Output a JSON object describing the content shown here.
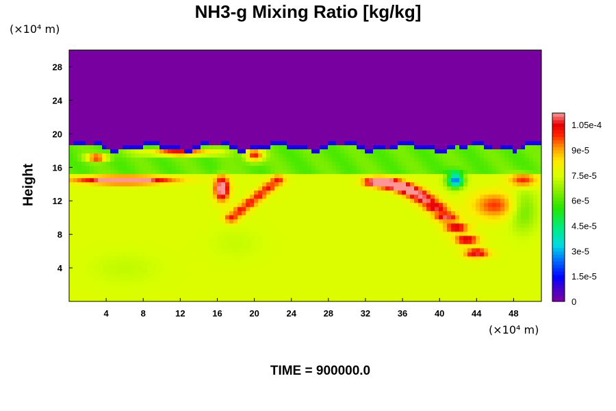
{
  "chart_data": {
    "type": "heatmap",
    "title": "NH3-g Mixing Ratio [kg/kg]",
    "ylabel": "Height",
    "x_unit_label": "(×10⁴ m)",
    "y_unit_label": "(×10⁴ m)",
    "footer": "TIME = 900000.0",
    "xlim": [
      0,
      51
    ],
    "ylim": [
      0,
      30
    ],
    "x_ticks": [
      4,
      8,
      12,
      16,
      20,
      24,
      28,
      32,
      36,
      40,
      44,
      48
    ],
    "y_ticks": [
      4,
      8,
      12,
      16,
      20,
      24,
      28
    ],
    "colorbar": {
      "min": 0,
      "max": 0.000112,
      "tick_values": [
        0,
        1.5e-05,
        3e-05,
        4.5e-05,
        6e-05,
        7.5e-05,
        9e-05,
        0.000105
      ],
      "tick_labels": [
        "0",
        "1.5e-5",
        "3e-5",
        "4.5e-5",
        "6e-5",
        "7.5e-5",
        "9e-5",
        "1.05e-4"
      ]
    },
    "regions": {
      "upper_purple": {
        "description_value": 0,
        "y_above": 18.5
      },
      "lower_layer_value": 7.6e-05,
      "green_band_y": [
        15.0,
        18.3
      ],
      "green_band_value": 6.2e-05,
      "high_values_peak": 0.00011,
      "low_value_spot": {
        "x": 41.7,
        "y": 14.5,
        "value": 1e-05
      }
    }
  },
  "colors": {
    "background": "#ffffff",
    "frame": "#000000"
  }
}
